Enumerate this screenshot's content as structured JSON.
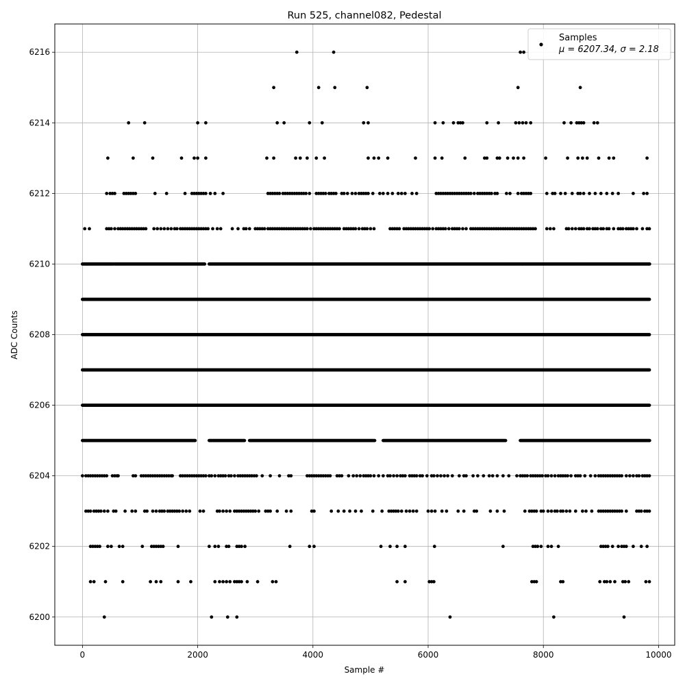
{
  "chart_data": {
    "type": "scatter",
    "title": "Run 525, channel082, Pedestal",
    "xlabel": "Sample #",
    "ylabel": "ADC Counts",
    "xlim": [
      -480,
      10280
    ],
    "ylim": [
      6199.2,
      6216.8
    ],
    "xticks": [
      0,
      2000,
      4000,
      6000,
      8000,
      10000
    ],
    "yticks": [
      6200,
      6202,
      6204,
      6206,
      6208,
      6210,
      6212,
      6214,
      6216
    ],
    "grid": true,
    "legend_position": "top-right",
    "marker_color": "#000000",
    "series": [
      {
        "name": "Samples",
        "stats_label": "μ = 6207.34, σ = 2.18",
        "dense_levels": [
          {
            "y": 6205,
            "ranges": [
              [
                0,
                1960
              ],
              [
                2200,
                2820
              ],
              [
                2900,
                5080
              ],
              [
                5220,
                7350
              ],
              [
                7600,
                9850
              ]
            ]
          },
          {
            "y": 6206,
            "ranges": [
              [
                0,
                9850
              ]
            ]
          },
          {
            "y": 6207,
            "ranges": [
              [
                0,
                9850
              ]
            ]
          },
          {
            "y": 6208,
            "ranges": [
              [
                0,
                9850
              ]
            ]
          },
          {
            "y": 6209,
            "ranges": [
              [
                0,
                9850
              ]
            ]
          },
          {
            "y": 6210,
            "ranges": [
              [
                0,
                540
              ],
              [
                560,
                2120
              ],
              [
                2200,
                9850
              ]
            ]
          }
        ],
        "clusters": [
          {
            "y": 6204,
            "x": [
              0,
              60,
              100,
              140,
              180,
              220,
              260,
              300,
              340,
              380,
              420,
              520,
              560,
              600,
              620,
              880,
              920,
              1020,
              1060,
              1100,
              1140,
              1180,
              1220,
              1260,
              1300,
              1340,
              1380,
              1420,
              1460,
              1500,
              1540,
              1560,
              1700,
              1740,
              1780,
              1820,
              1860,
              1900,
              1940,
              1980,
              2020,
              2060,
              2100,
              2140,
              2200,
              2240,
              2300,
              2360,
              2400,
              2440,
              2480,
              2540,
              2580,
              2640,
              2700,
              2740,
              2780,
              2820,
              2860,
              2900,
              2940,
              2980,
              3020,
              3120,
              3260,
              3420,
              3580,
              3620,
              3900,
              3940,
              3980,
              4020,
              4060,
              4100,
              4140,
              4180,
              4220,
              4260,
              4300,
              4420,
              4460,
              4500,
              4620,
              4700,
              4760,
              4820,
              4880,
              4920,
              4960,
              5000,
              5060,
              5140,
              5220,
              5300,
              5340,
              5400,
              5460,
              5520,
              5560,
              5600,
              5680,
              5720,
              5760,
              5800,
              5860,
              5900,
              5980,
              6060,
              6100,
              6160,
              6220,
              6280,
              6340,
              6420,
              6540,
              6620,
              6660,
              6780,
              6860,
              6960,
              7060,
              7120,
              7200,
              7300,
              7400,
              7540,
              7600,
              7640,
              7680,
              7720,
              7780,
              7820,
              7860,
              7900,
              7940,
              7980,
              8040,
              8080,
              8140,
              8200,
              8260,
              8300,
              8340,
              8380,
              8420,
              8480,
              8560,
              8600,
              8640,
              8720,
              8820,
              8900,
              8960,
              9000,
              9040,
              9080,
              9120,
              9160,
              9200,
              9240,
              9280,
              9320,
              9360,
              9440,
              9500,
              9560,
              9620,
              9660,
              9720,
              9760,
              9800,
              9840
            ]
          },
          {
            "y": 6211,
            "x": [
              40,
              120,
              420,
              460,
              500,
              560,
              620,
              660,
              700,
              740,
              780,
              820,
              860,
              900,
              940,
              980,
              1020,
              1060,
              1100,
              1240,
              1300,
              1360,
              1420,
              1480,
              1540,
              1600,
              1640,
              1700,
              1740,
              1780,
              1820,
              1860,
              1900,
              1940,
              1980,
              2020,
              2060,
              2100,
              2140,
              2180,
              2260,
              2340,
              2400,
              2600,
              2700,
              2800,
              2840,
              2900,
              3000,
              3040,
              3080,
              3120,
              3160,
              3220,
              3260,
              3300,
              3340,
              3380,
              3420,
              3460,
              3500,
              3540,
              3580,
              3620,
              3660,
              3700,
              3740,
              3780,
              3820,
              3860,
              3900,
              3960,
              4020,
              4060,
              4100,
              4140,
              4180,
              4220,
              4260,
              4300,
              4340,
              4380,
              4420,
              4460,
              4540,
              4580,
              4620,
              4660,
              4700,
              4740,
              4800,
              4860,
              4900,
              4940,
              5000,
              5060,
              5340,
              5380,
              5420,
              5460,
              5500,
              5580,
              5620,
              5660,
              5700,
              5740,
              5780,
              5820,
              5860,
              5900,
              5940,
              5980,
              6020,
              6080,
              6140,
              6180,
              6220,
              6260,
              6300,
              6360,
              6420,
              6460,
              6500,
              6540,
              6600,
              6660,
              6740,
              6780,
              6820,
              6860,
              6900,
              6940,
              6980,
              7020,
              7060,
              7100,
              7140,
              7180,
              7220,
              7260,
              7300,
              7340,
              7380,
              7420,
              7460,
              7500,
              7540,
              7580,
              7620,
              7660,
              7700,
              7740,
              7780,
              7820,
              7860,
              8060,
              8120,
              8180,
              8400,
              8440,
              8500,
              8560,
              8620,
              8660,
              8700,
              8760,
              8800,
              8860,
              8900,
              8940,
              9000,
              9040,
              9100,
              9140,
              9220,
              9300,
              9340,
              9380,
              9440,
              9480,
              9520,
              9560,
              9620,
              9720,
              9800,
              9840
            ]
          },
          {
            "y": 6203,
            "x": [
              60,
              100,
              140,
              200,
              240,
              280,
              320,
              380,
              440,
              540,
              580,
              740,
              860,
              920,
              1080,
              1120,
              1220,
              1280,
              1340,
              1380,
              1420,
              1480,
              1520,
              1560,
              1600,
              1640,
              1680,
              1740,
              1800,
              1860,
              2040,
              2100,
              2340,
              2380,
              2440,
              2500,
              2560,
              2640,
              2680,
              2720,
              2760,
              2800,
              2840,
              2880,
              2920,
              2960,
              3000,
              3060,
              3180,
              3220,
              3260,
              3380,
              3540,
              3620,
              3980,
              4020,
              4320,
              4440,
              4540,
              4640,
              4740,
              4840,
              5040,
              5200,
              5320,
              5360,
              5400,
              5440,
              5480,
              5540,
              5620,
              5680,
              5740,
              5800,
              6000,
              6060,
              6120,
              6240,
              6320,
              6520,
              6620,
              6800,
              6840,
              7080,
              7200,
              7320,
              7680,
              7760,
              7800,
              7840,
              7880,
              7960,
              8000,
              8080,
              8140,
              8200,
              8240,
              8300,
              8340,
              8400,
              8460,
              8560,
              8680,
              8740,
              8840,
              8960,
              9000,
              9040,
              9080,
              9120,
              9160,
              9200,
              9240,
              9280,
              9320,
              9360,
              9440,
              9620,
              9660,
              9700,
              9760,
              9800,
              9840
            ]
          },
          {
            "y": 6212,
            "x": [
              420,
              480,
              520,
              560,
              720,
              760,
              800,
              840,
              880,
              920,
              1260,
              1460,
              1780,
              1900,
              1940,
              1980,
              2020,
              2060,
              2100,
              2140,
              2220,
              2300,
              2440,
              3220,
              3260,
              3300,
              3340,
              3380,
              3420,
              3480,
              3520,
              3560,
              3600,
              3640,
              3680,
              3720,
              3760,
              3800,
              3840,
              3880,
              3940,
              4060,
              4100,
              4140,
              4180,
              4220,
              4280,
              4320,
              4360,
              4400,
              4500,
              4540,
              4600,
              4680,
              4740,
              4800,
              4840,
              4880,
              4920,
              4960,
              5040,
              5160,
              5220,
              5300,
              5380,
              5480,
              5540,
              5600,
              5720,
              5800,
              6140,
              6180,
              6220,
              6260,
              6300,
              6340,
              6380,
              6420,
              6460,
              6500,
              6540,
              6580,
              6620,
              6660,
              6700,
              6740,
              6800,
              6860,
              6900,
              6940,
              6980,
              7020,
              7060,
              7100,
              7160,
              7200,
              7360,
              7420,
              7560,
              7620,
              7660,
              7700,
              7740,
              7780,
              8060,
              8160,
              8200,
              8300,
              8380,
              8500,
              8600,
              8640,
              8700,
              8800,
              8900,
              9000,
              9100,
              9200,
              9300,
              9560,
              9740,
              9800
            ]
          },
          {
            "y": 6202,
            "x": [
              140,
              180,
              220,
              260,
              300,
              440,
              500,
              640,
              700,
              1040,
              1200,
              1240,
              1280,
              1320,
              1360,
              1400,
              1660,
              2200,
              2300,
              2360,
              2500,
              2540,
              2680,
              2720,
              2760,
              2820,
              3600,
              3940,
              4020,
              5180,
              5340,
              5460,
              5600,
              6110,
              7300,
              7820,
              7860,
              7900,
              7960,
              8080,
              8140,
              8260,
              9000,
              9040,
              9080,
              9120,
              9200,
              9300,
              9360,
              9400,
              9440,
              9560,
              9700,
              9800
            ]
          },
          {
            "y": 6213,
            "x": [
              440,
              880,
              1220,
              1720,
              1940,
              2000,
              2140,
              3200,
              3320,
              3700,
              3780,
              3900,
              4060,
              4200,
              4960,
              5060,
              5140,
              5300,
              5780,
              6120,
              6240,
              6640,
              6980,
              7020,
              7200,
              7240,
              7380,
              7480,
              7560,
              7660,
              8040,
              8420,
              8600,
              8680,
              8760,
              8960,
              9140,
              9220,
              9800
            ]
          },
          {
            "y": 6214,
            "x": [
              800,
              1080,
              2000,
              2140,
              3380,
              3500,
              3940,
              4160,
              4880,
              4960,
              6120,
              6260,
              6440,
              6520,
              6560,
              6600,
              7020,
              7220,
              7520,
              7580,
              7640,
              7700,
              7780,
              8360,
              8480,
              8580,
              8620,
              8660,
              8700,
              8880,
              8940
            ]
          },
          {
            "y": 6201,
            "x": [
              140,
              200,
              400,
              700,
              1180,
              1280,
              1360,
              1660,
              1880,
              2300,
              2380,
              2440,
              2500,
              2560,
              2640,
              2680,
              2720,
              2760,
              2860,
              3040,
              3300,
              3360,
              5460,
              5600,
              6020,
              6060,
              6100,
              7800,
              7840,
              7880,
              8300,
              8340,
              8980,
              9060,
              9100,
              9160,
              9240,
              9380,
              9420,
              9480,
              9780,
              9840
            ]
          },
          {
            "y": 6215,
            "x": [
              3320,
              4100,
              4380,
              4940,
              7560,
              8640
            ]
          },
          {
            "y": 6216,
            "x": [
              3720,
              4360,
              7600,
              7660
            ]
          },
          {
            "y": 6200,
            "x": [
              380,
              2240,
              2520,
              2680,
              6380,
              8180,
              9400
            ]
          }
        ]
      }
    ]
  }
}
